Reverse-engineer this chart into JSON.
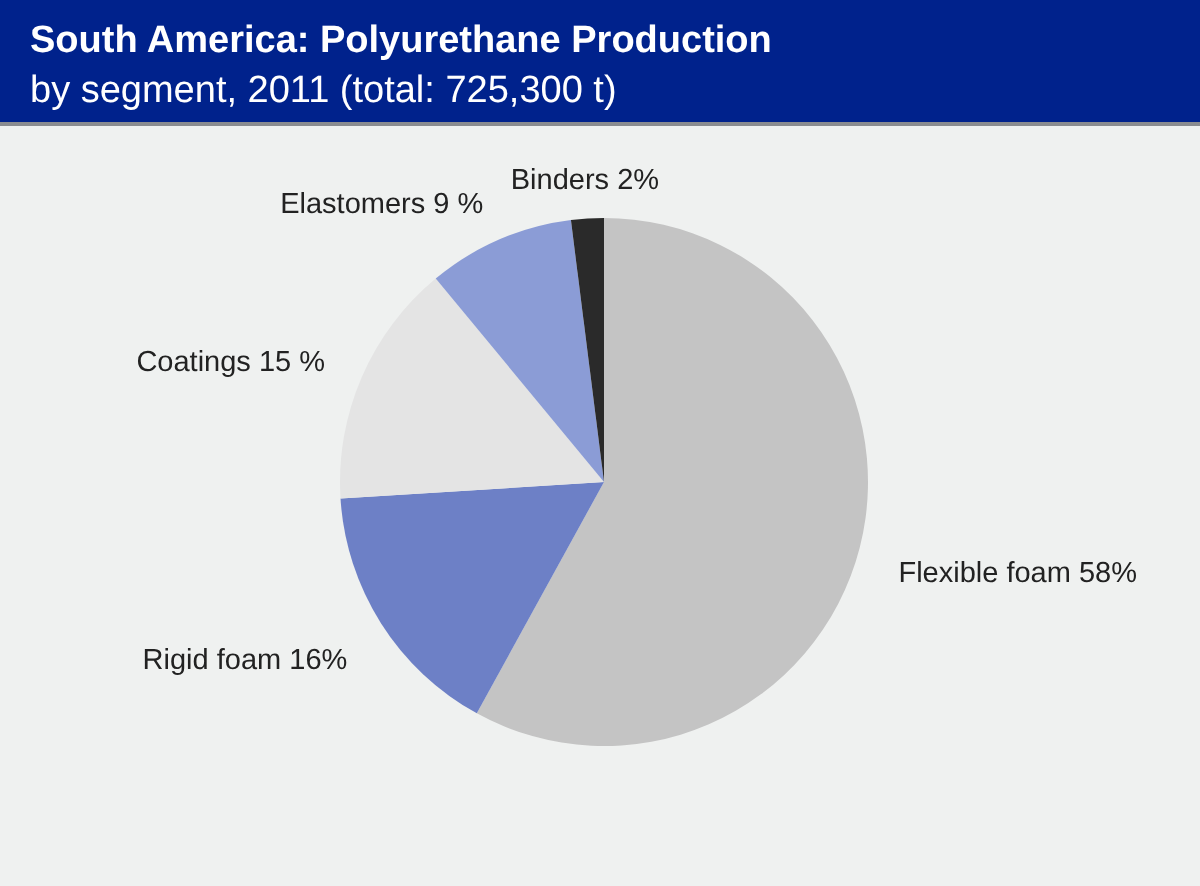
{
  "chart_data": {
    "type": "pie",
    "title": "South America: Polyurethane Production",
    "subtitle": "by segment, 2011 (total: 725,300 t)",
    "categories": [
      "Flexible foam",
      "Rigid foam",
      "Coatings",
      "Elastomers",
      "Binders"
    ],
    "values": [
      58,
      16,
      15,
      9,
      2
    ],
    "colors": [
      "#c4c4c4",
      "#6d80c6",
      "#e4e4e4",
      "#8b9cd6",
      "#2a2a2a"
    ],
    "value_labels": [
      "58%",
      "16%",
      "15 %",
      "9 %",
      "2%"
    ]
  }
}
